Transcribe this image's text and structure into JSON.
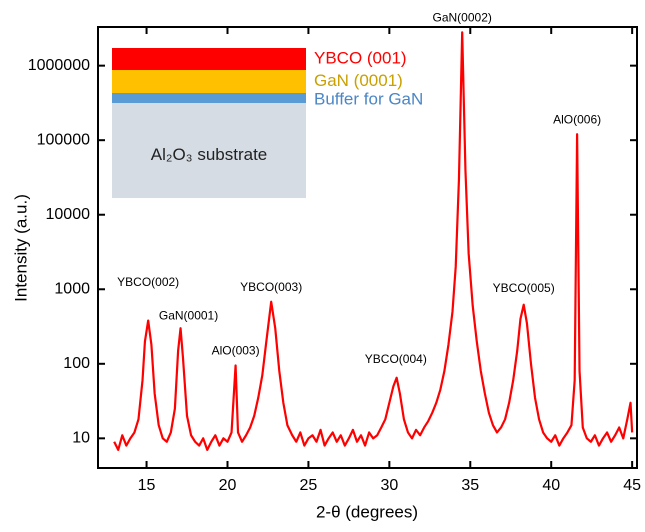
{
  "chart_data": {
    "type": "line",
    "xlabel": "2-θ (degrees)",
    "ylabel": "Intensity (a.u.)",
    "color": "#ff0000",
    "log_y": true,
    "xlim": [
      12,
      45.3
    ],
    "ylim": [
      4,
      3300000
    ],
    "xticks": [
      15,
      20,
      25,
      30,
      35,
      40,
      45
    ],
    "yticks": [
      10,
      100,
      1000,
      10000,
      100000,
      1000000
    ],
    "x": [
      13.0,
      13.25,
      13.5,
      13.75,
      14.0,
      14.25,
      14.5,
      14.75,
      14.9,
      15.1,
      15.3,
      15.5,
      15.75,
      16.0,
      16.25,
      16.5,
      16.75,
      16.95,
      17.1,
      17.25,
      17.5,
      17.75,
      18.0,
      18.25,
      18.5,
      18.75,
      19.0,
      19.25,
      19.5,
      19.75,
      20.0,
      20.25,
      20.5,
      20.65,
      20.9,
      21.15,
      21.4,
      21.65,
      21.9,
      22.15,
      22.4,
      22.7,
      22.95,
      23.2,
      23.45,
      23.7,
      24.0,
      24.25,
      24.5,
      24.75,
      25.0,
      25.25,
      25.5,
      25.75,
      26.0,
      26.25,
      26.5,
      26.75,
      27.0,
      27.25,
      27.5,
      27.75,
      28.0,
      28.25,
      28.5,
      28.75,
      29.0,
      29.25,
      29.5,
      29.75,
      30.0,
      30.25,
      30.45,
      30.65,
      30.9,
      31.15,
      31.4,
      31.65,
      31.9,
      32.15,
      32.4,
      32.65,
      32.9,
      33.15,
      33.4,
      33.65,
      33.9,
      34.1,
      34.3,
      34.5,
      34.7,
      34.9,
      35.15,
      35.4,
      35.65,
      35.9,
      36.15,
      36.4,
      36.65,
      36.9,
      37.15,
      37.4,
      37.65,
      37.9,
      38.1,
      38.3,
      38.5,
      38.75,
      39.0,
      39.25,
      39.5,
      39.75,
      40.0,
      40.25,
      40.5,
      40.75,
      41.0,
      41.25,
      41.45,
      41.6,
      41.75,
      41.95,
      42.2,
      42.45,
      42.7,
      42.95,
      43.2,
      43.45,
      43.7,
      43.95,
      44.2,
      44.45,
      44.7,
      44.9,
      45.0
    ],
    "values": [
      9,
      7,
      11,
      8,
      10,
      12,
      18,
      60,
      200,
      380,
      180,
      40,
      15,
      10,
      9,
      12,
      25,
      150,
      300,
      120,
      20,
      11,
      9,
      8,
      10,
      7,
      9,
      11,
      8,
      10,
      9,
      12,
      95,
      12,
      9,
      11,
      14,
      20,
      35,
      70,
      200,
      680,
      300,
      80,
      30,
      15,
      11,
      9,
      12,
      8,
      10,
      11,
      9,
      13,
      8,
      10,
      12,
      9,
      11,
      8,
      10,
      13,
      9,
      11,
      8,
      12,
      10,
      11,
      14,
      18,
      30,
      50,
      65,
      40,
      18,
      12,
      10,
      13,
      11,
      14,
      17,
      22,
      30,
      45,
      80,
      180,
      500,
      2000,
      30000,
      2800000,
      40000,
      3000,
      600,
      200,
      80,
      40,
      22,
      15,
      12,
      14,
      18,
      30,
      60,
      150,
      400,
      620,
      350,
      100,
      35,
      18,
      12,
      10,
      9,
      11,
      8,
      10,
      12,
      15,
      60,
      120000,
      80,
      14,
      10,
      9,
      11,
      8,
      10,
      12,
      9,
      11,
      14,
      10,
      18,
      30,
      12
    ],
    "annotations": [
      {
        "text": "YBCO(002)",
        "x": 15.1,
        "y": 380
      },
      {
        "text": "GaN(0001)",
        "x": 17.1,
        "y": 300
      },
      {
        "text": "AlO(003)",
        "x": 20.5,
        "y": 95
      },
      {
        "text": "YBCO(003)",
        "x": 22.7,
        "y": 680
      },
      {
        "text": "YBCO(004)",
        "x": 30.4,
        "y": 65
      },
      {
        "text": "GaN(0002)",
        "x": 34.5,
        "y": 2800000
      },
      {
        "text": "YBCO(005)",
        "x": 38.3,
        "y": 620
      },
      {
        "text": "AlO(006)",
        "x": 41.6,
        "y": 120000
      }
    ],
    "inset": [
      {
        "label": "YBCO (001)",
        "color": "#ff0000",
        "text_color": "#ff0000"
      },
      {
        "label": "GaN (0001)",
        "color": "#ffc000",
        "text_color": "#c9a000"
      },
      {
        "label": "Buffer for GaN",
        "color": "#5b9bd5",
        "text_color": "#4a86c8"
      },
      {
        "label": "Al₂O₃ substrate",
        "color": "#d6dce4",
        "text_color": "#222222"
      }
    ]
  }
}
